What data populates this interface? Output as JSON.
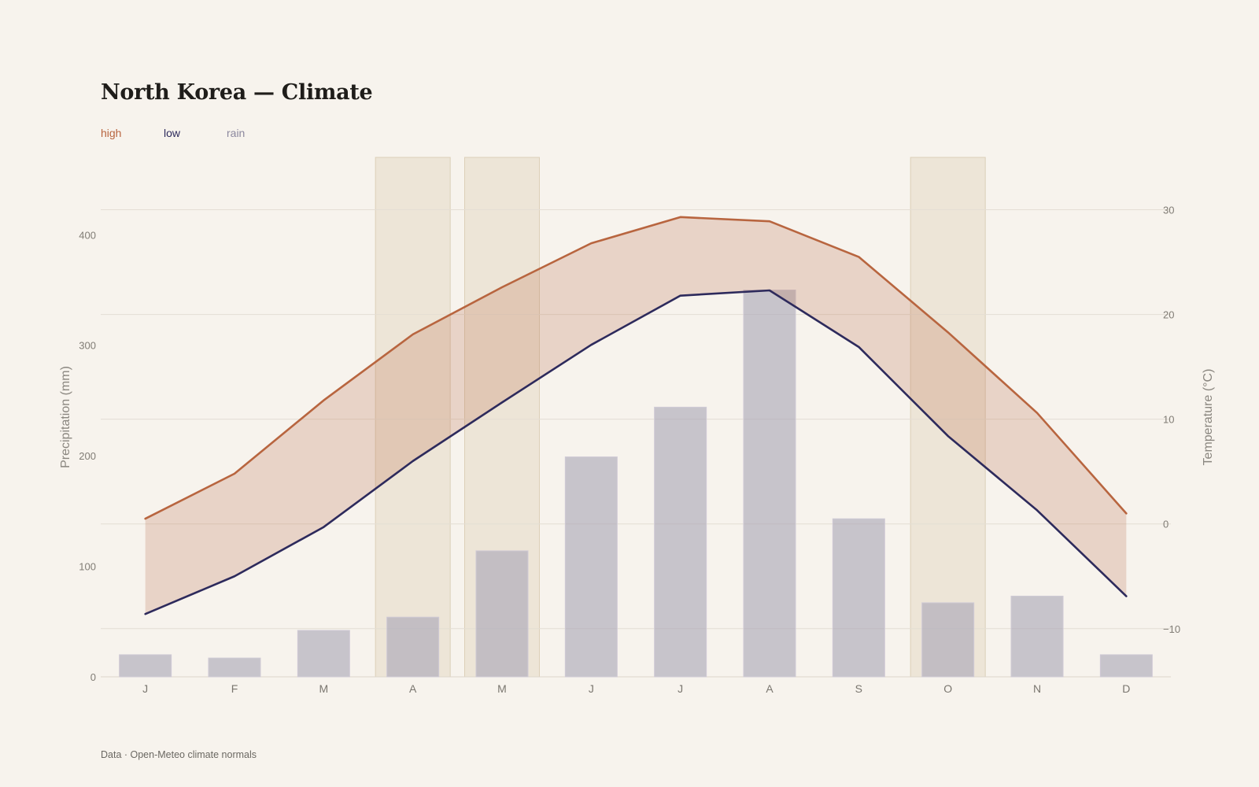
{
  "title": "North Korea — Climate",
  "legend": [
    {
      "label": "high",
      "color": "#b8653f"
    },
    {
      "label": "low",
      "color": "#2d2a5c"
    },
    {
      "label": "rain",
      "color": "#8c889e"
    }
  ],
  "source": "Data · Open-Meteo climate normals",
  "chart_data": {
    "type": "bar",
    "categories": [
      "J",
      "F",
      "M",
      "A",
      "M",
      "J",
      "J",
      "A",
      "S",
      "O",
      "N",
      "D"
    ],
    "series": [
      {
        "name": "rain",
        "type": "bar",
        "axis": "left",
        "values": [
          20,
          17,
          42,
          54,
          114,
          199,
          244,
          350,
          143,
          67,
          73,
          20
        ]
      },
      {
        "name": "high",
        "type": "line",
        "axis": "right",
        "values": [
          0.5,
          4.8,
          11.8,
          18.1,
          22.6,
          26.8,
          29.3,
          28.9,
          25.5,
          18.3,
          10.6,
          1.0
        ]
      },
      {
        "name": "low",
        "type": "line",
        "axis": "right",
        "values": [
          -8.6,
          -5.0,
          -0.3,
          6.0,
          11.6,
          17.1,
          21.8,
          22.3,
          16.9,
          8.4,
          1.3,
          -6.9
        ]
      }
    ],
    "highlighted_months": [
      3,
      4,
      9
    ],
    "ylabel": "Precipitation (mm)",
    "ylabel_right": "Temperature (°C)",
    "ylim": [
      0,
      470
    ],
    "ylim_right": [
      -14.6,
      35
    ],
    "yticks": [
      0,
      100,
      200,
      300,
      400
    ],
    "yticks_right": [
      -10,
      0,
      10,
      20,
      30
    ],
    "yticks_right_labels": [
      "−10",
      "0",
      "10",
      "20",
      "30"
    ],
    "grid": true
  }
}
